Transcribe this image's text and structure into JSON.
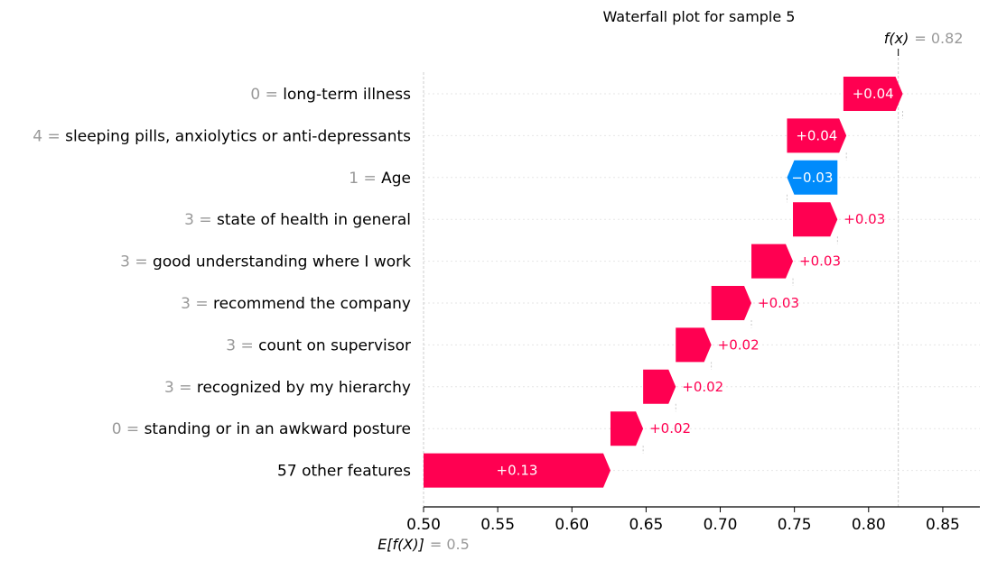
{
  "chart_data": {
    "type": "waterfall",
    "title": "Waterfall plot for sample 5",
    "base_value": 0.5,
    "base_value_display": "0.5",
    "base_label": "E[f(X)]",
    "output_value": 0.82,
    "output_value_display": "0.82",
    "output_label": "f(x)",
    "xlim": [
      0.5,
      0.875
    ],
    "xticks": [
      0.5,
      0.55,
      0.6,
      0.65,
      0.7,
      0.75,
      0.8,
      0.85
    ],
    "xtick_labels": [
      "0.50",
      "0.55",
      "0.60",
      "0.65",
      "0.70",
      "0.75",
      "0.80",
      "0.85"
    ],
    "positive_color": "#ff0051",
    "negative_color": "#008bfb",
    "features": [
      {
        "value": "0",
        "name": "long-term illness",
        "start": 0.783,
        "shap": 0.04,
        "label": "+0.04"
      },
      {
        "value": "4",
        "name": "sleeping pills, anxiolytics or anti-depressants",
        "start": 0.745,
        "shap": 0.04,
        "label": "+0.04"
      },
      {
        "value": "1",
        "name": "Age",
        "start": 0.779,
        "shap": -0.034,
        "label": "−0.03"
      },
      {
        "value": "3",
        "name": "state of health in general",
        "start": 0.749,
        "shap": 0.03,
        "label": "+0.03"
      },
      {
        "value": "3",
        "name": "good understanding where I work",
        "start": 0.721,
        "shap": 0.028,
        "label": "+0.03"
      },
      {
        "value": "3",
        "name": "recommend the company",
        "start": 0.694,
        "shap": 0.027,
        "label": "+0.03"
      },
      {
        "value": "3",
        "name": "count on supervisor",
        "start": 0.67,
        "shap": 0.024,
        "label": "+0.02"
      },
      {
        "value": "3",
        "name": "recognized by my hierarchy",
        "start": 0.648,
        "shap": 0.022,
        "label": "+0.02"
      },
      {
        "value": "0",
        "name": "standing or in an awkward posture",
        "start": 0.626,
        "shap": 0.022,
        "label": "+0.02"
      },
      {
        "value": "",
        "name": "57 other features",
        "start": 0.5,
        "shap": 0.126,
        "label": "+0.13"
      }
    ]
  }
}
